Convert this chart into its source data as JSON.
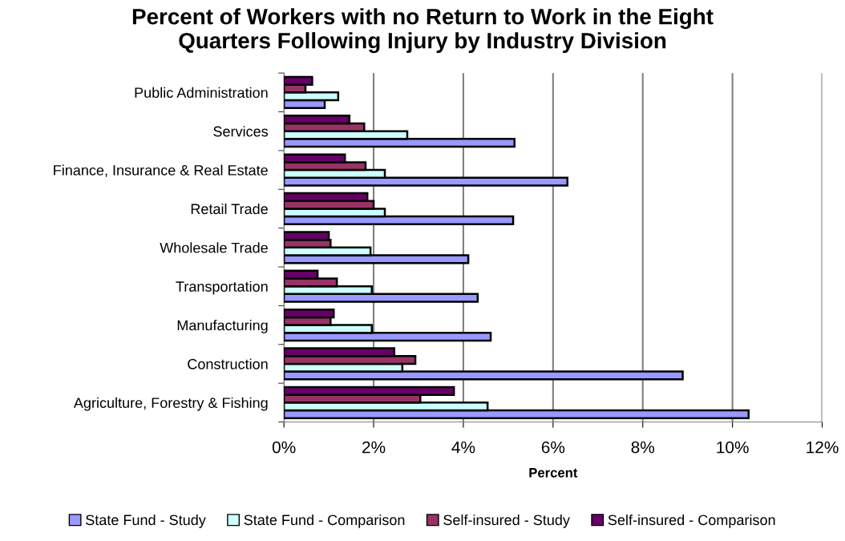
{
  "chart_data": {
    "type": "bar",
    "orientation": "horizontal",
    "title": "Percent of Workers with no Return to Work in the Eight\nQuarters Following Injury by Industry Division",
    "xlabel": "Percent",
    "categories": [
      "Public Administration",
      "Services",
      "Finance, Insurance & Real Estate",
      "Retail Trade",
      "Wholesale Trade",
      "Transportation",
      "Manufacturing",
      "Construction",
      "Agriculture, Forestry & Fishing"
    ],
    "series": [
      {
        "name": "State Fund - Study",
        "color": "#9999ff",
        "values": [
          0.91,
          5.14,
          6.32,
          5.11,
          4.11,
          4.32,
          4.61,
          8.89,
          10.36
        ]
      },
      {
        "name": "State Fund - Comparison",
        "color": "#ccffff",
        "values": [
          1.21,
          2.75,
          2.25,
          2.25,
          1.93,
          1.96,
          1.96,
          2.64,
          4.54
        ]
      },
      {
        "name": "Self-insured - Study",
        "color": "#993366",
        "values": [
          0.48,
          1.79,
          1.82,
          2.0,
          1.04,
          1.18,
          1.04,
          2.93,
          3.04
        ]
      },
      {
        "name": "Self-insured - Comparison",
        "color": "#660066",
        "values": [
          0.63,
          1.46,
          1.36,
          1.86,
          1.0,
          0.75,
          1.11,
          2.46,
          3.79
        ]
      }
    ],
    "xlim": [
      0,
      12
    ],
    "xticks": [
      {
        "value": 0,
        "label": "0%"
      },
      {
        "value": 2,
        "label": "2%"
      },
      {
        "value": 4,
        "label": "4%"
      },
      {
        "value": 6,
        "label": "6%"
      },
      {
        "value": 8,
        "label": "8%"
      },
      {
        "value": 10,
        "label": "10%"
      },
      {
        "value": 12,
        "label": "12%"
      }
    ],
    "grid": "x",
    "legend": "bottom"
  }
}
